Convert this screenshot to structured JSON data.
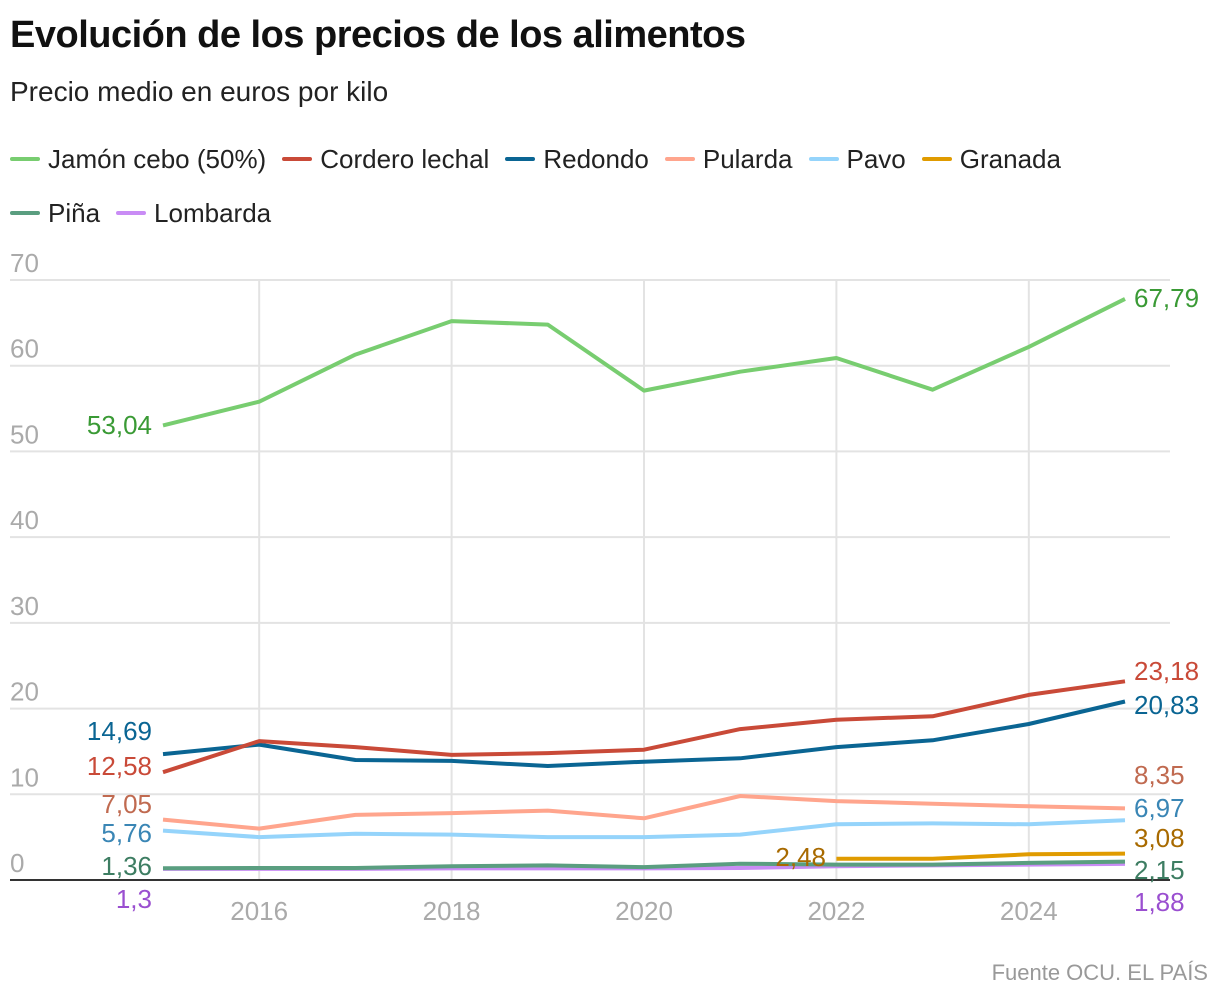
{
  "title": "Evolución de los precios de los alimentos",
  "subtitle": "Precio medio en euros por kilo",
  "source": "Fuente OCU. EL PAÍS",
  "chart_data": {
    "type": "line",
    "title": "Evolución de los precios de los alimentos",
    "subtitle": "Precio medio en euros por kilo",
    "xlabel": "",
    "ylabel": "",
    "x": [
      2015,
      2016,
      2017,
      2018,
      2019,
      2020,
      2021,
      2022,
      2023,
      2024,
      2025
    ],
    "xticks": [
      "2016",
      "2018",
      "2020",
      "2022",
      "2024"
    ],
    "yticks": [
      "0",
      "10",
      "20",
      "30",
      "40",
      "50",
      "60",
      "70"
    ],
    "ylim": [
      0,
      70
    ],
    "grid": true,
    "legend": "top",
    "series": [
      {
        "name": "Jamón cebo (50%)",
        "color": "#78cd70",
        "label_color": "#3a9a35",
        "start_label": "53,04",
        "end_label": "67,79",
        "values": [
          53.04,
          55.8,
          61.3,
          65.2,
          64.8,
          57.1,
          59.3,
          60.9,
          57.2,
          62.2,
          67.79
        ]
      },
      {
        "name": "Cordero lechal",
        "color": "#c94a38",
        "label_color": "#c94a38",
        "start_label": "12,58",
        "end_label": "23,18",
        "values": [
          12.58,
          16.2,
          15.5,
          14.6,
          14.8,
          15.2,
          17.6,
          18.7,
          19.1,
          21.6,
          23.18
        ]
      },
      {
        "name": "Redondo",
        "color": "#0a6593",
        "label_color": "#0a6593",
        "start_label": "14,69",
        "end_label": "20,83",
        "values": [
          14.69,
          15.8,
          14.0,
          13.9,
          13.3,
          13.8,
          14.2,
          15.5,
          16.3,
          18.2,
          20.83
        ]
      },
      {
        "name": "Pularda",
        "color": "#ffa58d",
        "label_color": "#c06a50",
        "start_label": "7,05",
        "end_label": "8,35",
        "values": [
          7.05,
          6.0,
          7.6,
          7.8,
          8.1,
          7.2,
          9.8,
          9.2,
          8.9,
          8.6,
          8.35
        ]
      },
      {
        "name": "Pavo",
        "color": "#95d4fb",
        "label_color": "#3a86b5",
        "start_label": "5,76",
        "end_label": "6,97",
        "values": [
          5.76,
          5.0,
          5.4,
          5.3,
          5.0,
          5.0,
          5.3,
          6.5,
          6.6,
          6.5,
          6.97
        ]
      },
      {
        "name": "Granada",
        "color": "#e09b00",
        "label_color": "#a86a00",
        "start_label": "2,48",
        "end_label": "3,08",
        "values": [
          null,
          null,
          null,
          null,
          null,
          null,
          null,
          2.48,
          2.48,
          3.0,
          3.08
        ]
      },
      {
        "name": "Piña",
        "color": "#5a9e80",
        "label_color": "#3d7d62",
        "start_label": "1,36",
        "end_label": "2,15",
        "values": [
          1.36,
          1.4,
          1.4,
          1.6,
          1.7,
          1.5,
          1.9,
          1.8,
          1.8,
          2.0,
          2.15
        ]
      },
      {
        "name": "Lombarda",
        "color": "#c98cf5",
        "label_color": "#9a4fd0",
        "start_label": "1,3",
        "end_label": "1,88",
        "values": [
          1.3,
          1.3,
          1.3,
          1.35,
          1.35,
          1.35,
          1.4,
          1.6,
          1.7,
          1.8,
          1.88
        ]
      }
    ]
  }
}
